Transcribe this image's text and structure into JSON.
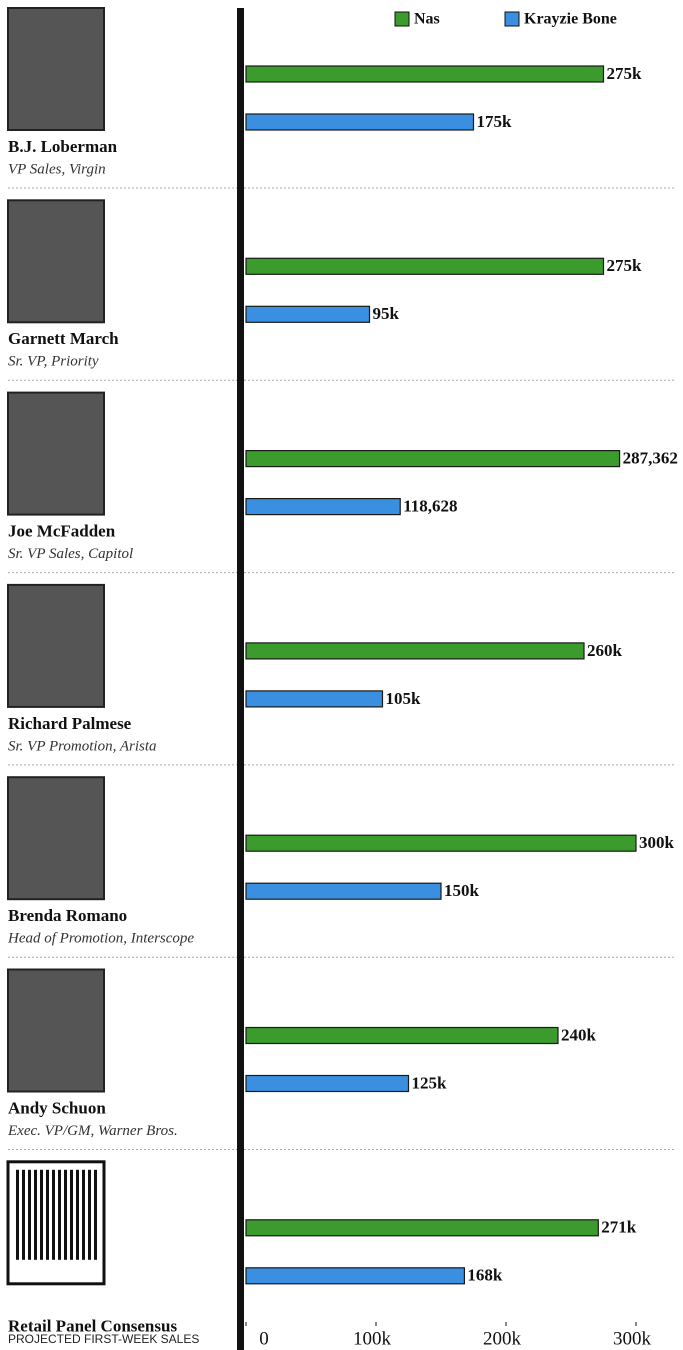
{
  "chart_data": {
    "type": "bar",
    "orientation": "horizontal",
    "categories": [
      "B.J. Loberman",
      "Garnett March",
      "Joe McFadden",
      "Richard Palmese",
      "Brenda Romano",
      "Andy Schuon",
      "Retail Panel Consensus"
    ],
    "roles": [
      "VP Sales, Virgin",
      "Sr. VP, Priority",
      "Sr. VP Sales, Capitol",
      "Sr. VP Promotion, Arista",
      "Head of Promotion, Interscope",
      "Exec. VP/GM, Warner Bros.",
      null
    ],
    "series": [
      {
        "name": "Nas",
        "color": "#3b9b2c",
        "values": [
          275000,
          275000,
          287362,
          260000,
          300000,
          240000,
          271000
        ],
        "value_labels": [
          "275k",
          "275k",
          "287,362",
          "260k",
          "300k",
          "240k",
          "271k"
        ]
      },
      {
        "name": "Krayzie Bone",
        "color": "#3a8fe0",
        "values": [
          175000,
          95000,
          118628,
          105000,
          150000,
          125000,
          168000
        ],
        "value_labels": [
          "175k",
          "95k",
          "118,628",
          "105k",
          "150k",
          "125k",
          "168k"
        ]
      }
    ],
    "xlabel": "PROJECTED FIRST-WEEK SALES",
    "xlim": [
      0,
      300000
    ],
    "xticks": [
      0,
      {
        "value": 100000,
        "label": "100k"
      },
      {
        "value": 200000,
        "label": "200k"
      },
      {
        "value": 300000,
        "label": "300k"
      }
    ],
    "legend": "top-right"
  }
}
